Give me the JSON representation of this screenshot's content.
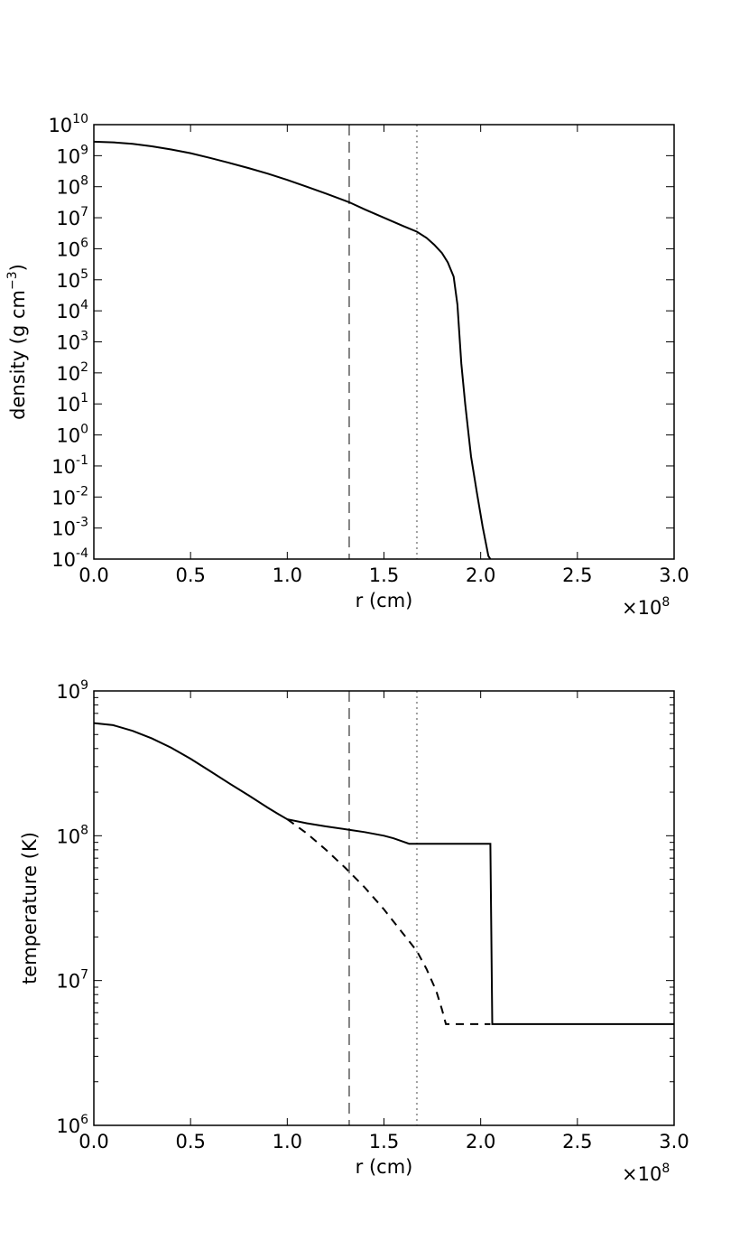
{
  "chart_data": [
    {
      "type": "line",
      "title": "",
      "xlabel": "r (cm)",
      "ylabel": "density (g cm",
      "ylabel_sup": "−3",
      "ylabel_end": ")",
      "x_multiplier": "×10",
      "x_multiplier_exp": "8",
      "xlim": [
        0,
        3.0
      ],
      "x_ticks": [
        0,
        0.5,
        1.0,
        1.5,
        2.0,
        2.5,
        3.0
      ],
      "x_tick_labels": [
        "0.0",
        "0.5",
        "1.0",
        "1.5",
        "2.0",
        "2.5",
        "3.0"
      ],
      "y_scale": "log",
      "ylim_exp": [
        -4,
        10
      ],
      "y_tick_exps": [
        -4,
        -3,
        -2,
        -1,
        0,
        1,
        2,
        3,
        4,
        5,
        6,
        7,
        8,
        9,
        10
      ],
      "y_tick_base": "10",
      "y_tick_sup": [
        "-4",
        "-3",
        "-2",
        "-1",
        "0",
        "1",
        "2",
        "3",
        "4",
        "5",
        "6",
        "7",
        "8",
        "9",
        "10"
      ],
      "vlines": [
        {
          "x": 1.32,
          "style": "dashed",
          "color": "#808080"
        },
        {
          "x": 1.67,
          "style": "dotted",
          "color": "#a0a0a0"
        }
      ],
      "series": [
        {
          "style": "solid",
          "color": "#000000",
          "x": [
            0.0,
            0.1,
            0.2,
            0.3,
            0.4,
            0.5,
            0.6,
            0.7,
            0.8,
            0.9,
            1.0,
            1.1,
            1.2,
            1.32,
            1.4,
            1.5,
            1.6,
            1.67,
            1.72,
            1.76,
            1.8,
            1.83,
            1.86,
            1.88,
            1.9,
            1.92,
            1.95,
            1.98,
            2.01,
            2.04,
            2.05
          ],
          "y_log10": [
            9.45,
            9.43,
            9.38,
            9.3,
            9.2,
            9.08,
            8.93,
            8.77,
            8.6,
            8.42,
            8.22,
            8.0,
            7.78,
            7.5,
            7.27,
            7.0,
            6.73,
            6.55,
            6.35,
            6.13,
            5.86,
            5.56,
            5.1,
            4.2,
            2.3,
            1.0,
            -0.7,
            -1.85,
            -2.95,
            -3.9,
            -4.0
          ]
        }
      ]
    },
    {
      "type": "line",
      "title": "",
      "xlabel": "r (cm)",
      "ylabel": "temperature (K)",
      "x_multiplier": "×10",
      "x_multiplier_exp": "8",
      "xlim": [
        0,
        3.0
      ],
      "x_ticks": [
        0,
        0.5,
        1.0,
        1.5,
        2.0,
        2.5,
        3.0
      ],
      "x_tick_labels": [
        "0.0",
        "0.5",
        "1.0",
        "1.5",
        "2.0",
        "2.5",
        "3.0"
      ],
      "y_scale": "log",
      "ylim_exp": [
        6,
        9
      ],
      "y_tick_exps": [
        6,
        7,
        8,
        9
      ],
      "y_tick_base": "10",
      "y_tick_sup": [
        "6",
        "7",
        "8",
        "9"
      ],
      "vlines": [
        {
          "x": 1.32,
          "style": "dashed",
          "color": "#808080"
        },
        {
          "x": 1.67,
          "style": "dotted",
          "color": "#a0a0a0"
        }
      ],
      "series": [
        {
          "style": "solid",
          "color": "#000000",
          "x": [
            0.0,
            0.1,
            0.2,
            0.3,
            0.4,
            0.5,
            0.6,
            0.7,
            0.8,
            0.9,
            0.95,
            1.0,
            1.1,
            1.2,
            1.32,
            1.4,
            1.5,
            1.55,
            1.6,
            1.63,
            1.7,
            1.8,
            1.9,
            2.0,
            2.05,
            2.06,
            2.2,
            2.4,
            2.6,
            2.8,
            3.0
          ],
          "y": [
            600000000.0,
            580000000.0,
            530000000.0,
            470000000.0,
            405000000.0,
            340000000.0,
            280000000.0,
            230000000.0,
            190000000.0,
            156000000.0,
            142000000.0,
            130000000.0,
            122000000.0,
            116000000.0,
            110000000.0,
            106000000.0,
            100000000.0,
            96000000.0,
            91000000.0,
            88000000.0,
            88000000.0,
            88000000.0,
            88000000.0,
            88000000.0,
            88000000.0,
            5000000.0,
            5000000.0,
            5000000.0,
            5000000.0,
            5000000.0,
            5000000.0
          ]
        },
        {
          "style": "dashed",
          "color": "#000000",
          "x": [
            1.0,
            1.1,
            1.2,
            1.3,
            1.4,
            1.5,
            1.6,
            1.67,
            1.72,
            1.77,
            1.8,
            1.82,
            1.9,
            2.0,
            2.05
          ],
          "y": [
            130000000.0,
            104000000.0,
            80000000.0,
            60000000.0,
            44000000.0,
            31000000.0,
            21000000.0,
            16000000.0,
            12000000.0,
            8500000.0,
            6300000.0,
            5000000.0,
            5000000.0,
            5000000.0,
            5000000.0
          ]
        }
      ]
    }
  ]
}
